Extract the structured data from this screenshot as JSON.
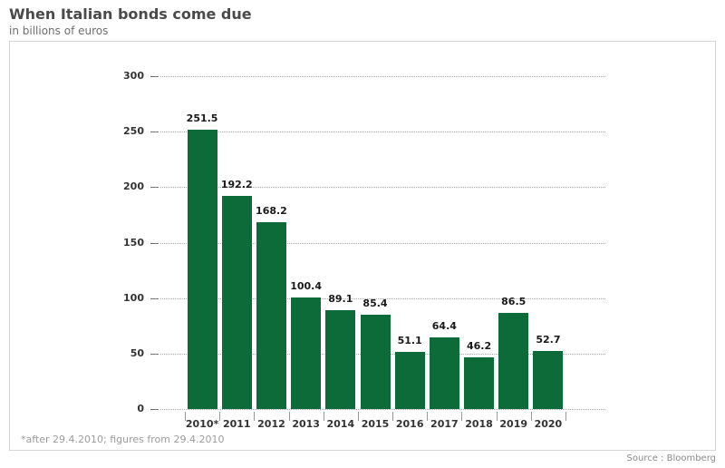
{
  "header": {
    "title": "When Italian bonds come due",
    "subtitle": "in billions of euros"
  },
  "footer": {
    "footnote": "*after 29.4.2010; figures from 29.4.2010",
    "source": "Source : Bloomberg"
  },
  "chart_data": {
    "type": "bar",
    "title": "When Italian bonds come due",
    "subtitle": "in billions of euros",
    "categories": [
      "2010*",
      "2011",
      "2012",
      "2013",
      "2014",
      "2015",
      "2016",
      "2017",
      "2018",
      "2019",
      "2020"
    ],
    "values": [
      251.5,
      192.2,
      168.2,
      100.4,
      89.1,
      85.4,
      51.1,
      64.4,
      46.2,
      86.5,
      52.7
    ],
    "xlabel": "",
    "ylabel": "",
    "ylim": [
      0,
      300
    ],
    "yticks": [
      0,
      50,
      100,
      150,
      200,
      250,
      300
    ],
    "grid": "horizontal-dotted",
    "legend": "none",
    "bar_color": "#0c6b38",
    "footnote": "*after 29.4.2010; figures from 29.4.2010",
    "source": "Source : Bloomberg"
  }
}
